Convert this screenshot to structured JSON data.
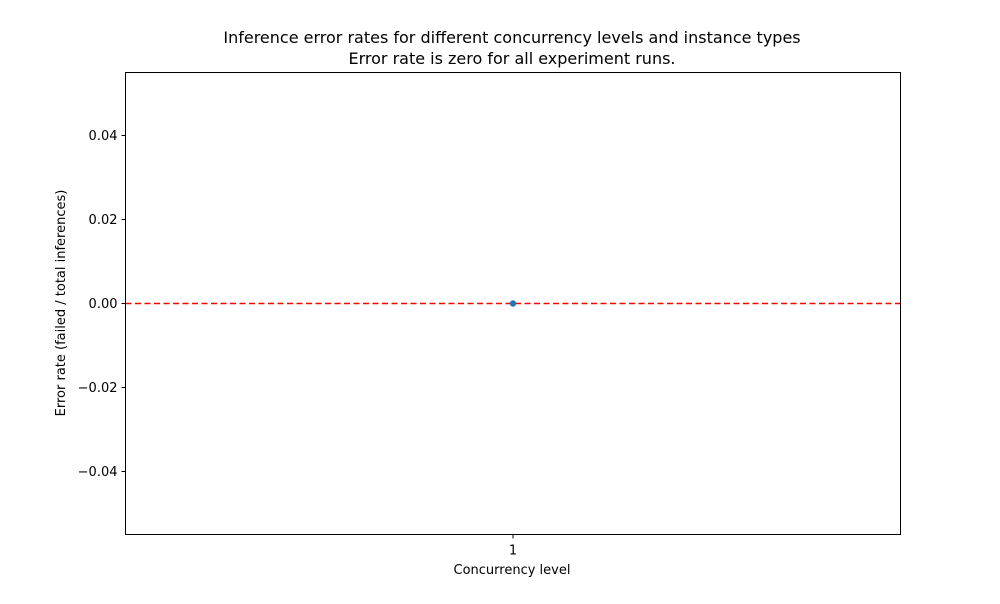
{
  "chart_data": {
    "type": "scatter",
    "title": "Inference error rates for different concurrency levels and instance types",
    "subtitle": "Error rate is zero for all experiment runs.",
    "xlabel": "Concurrency level",
    "ylabel": "Error rate (failed / total inferences)",
    "categories": [
      "1"
    ],
    "series": [
      {
        "values": [
          0.0
        ],
        "color": "#1f77b4"
      }
    ],
    "yticks": [
      0.04,
      0.02,
      0.0,
      -0.02,
      -0.04
    ],
    "ytick_labels": [
      "0.04",
      "0.02",
      "0.00",
      "−0.02",
      "−0.04"
    ],
    "ylim": [
      -0.055,
      0.055
    ],
    "reference_line": {
      "y": 0.0,
      "style": "dashed",
      "color": "#ff0000"
    },
    "grid": false,
    "legend": "none"
  }
}
